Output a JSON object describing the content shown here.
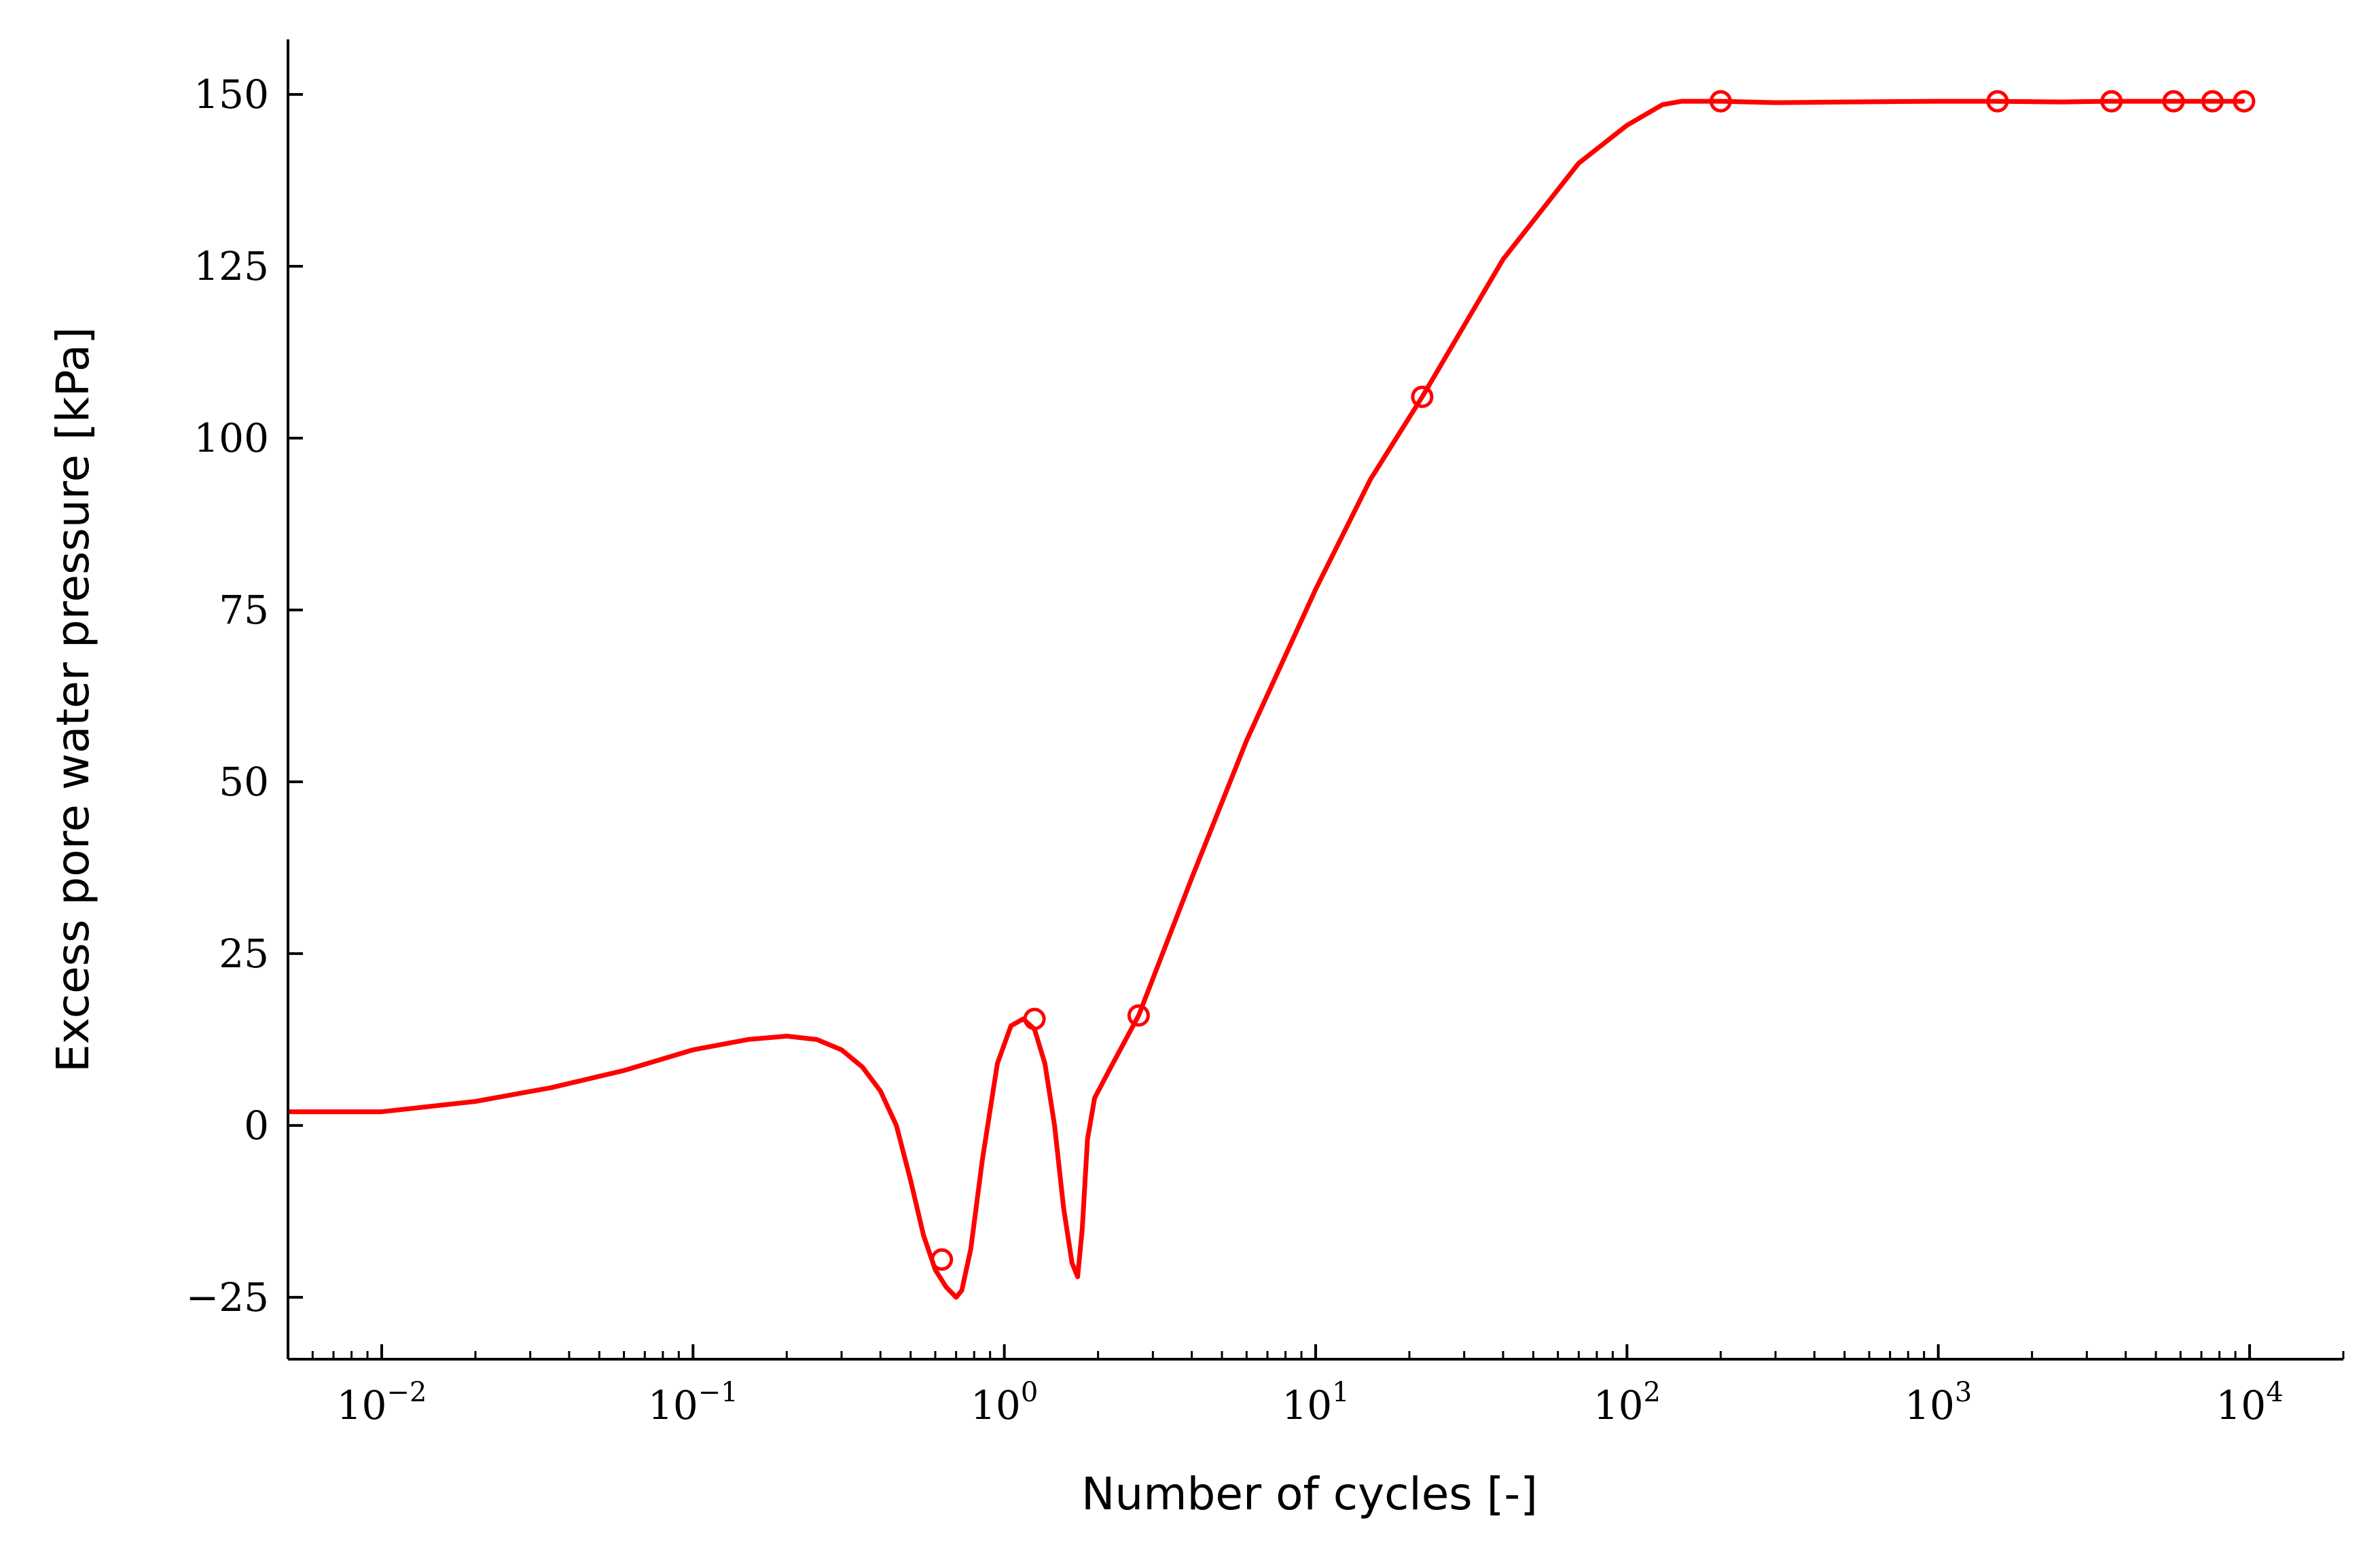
{
  "chart_data": {
    "type": "line",
    "xlabel": "Number of cycles [-]",
    "ylabel": "Excess pore water pressure [kPa]",
    "x_scale": "log",
    "xlim": [
      0.005,
      20000
    ],
    "ylim": [
      -34,
      158
    ],
    "grid": false,
    "color": "#ff0000",
    "xticks": [
      {
        "value": 0.01,
        "base": "10",
        "exp": "−2"
      },
      {
        "value": 0.1,
        "base": "10",
        "exp": "−1"
      },
      {
        "value": 1,
        "base": "10",
        "exp": "0"
      },
      {
        "value": 10,
        "base": "10",
        "exp": "1"
      },
      {
        "value": 100,
        "base": "10",
        "exp": "2"
      },
      {
        "value": 1000,
        "base": "10",
        "exp": "3"
      },
      {
        "value": 10000,
        "base": "10",
        "exp": "4"
      }
    ],
    "yticks": [
      {
        "value": -25,
        "label": "−25"
      },
      {
        "value": 0,
        "label": "0"
      },
      {
        "value": 25,
        "label": "25"
      },
      {
        "value": 50,
        "label": "50"
      },
      {
        "value": 75,
        "label": "75"
      },
      {
        "value": 100,
        "label": "100"
      },
      {
        "value": 125,
        "label": "125"
      },
      {
        "value": 150,
        "label": "150"
      }
    ],
    "line": {
      "x": [
        0.005,
        0.01,
        0.02,
        0.035,
        0.06,
        0.1,
        0.15,
        0.2,
        0.25,
        0.3,
        0.35,
        0.4,
        0.45,
        0.5,
        0.55,
        0.6,
        0.65,
        0.7,
        0.73,
        0.78,
        0.85,
        0.95,
        1.05,
        1.15,
        1.25,
        1.35,
        1.45,
        1.55,
        1.65,
        1.72,
        1.78,
        1.85,
        1.95,
        2.2,
        2.7,
        4,
        6,
        10,
        15,
        22,
        40,
        70,
        100,
        130,
        150,
        200,
        300,
        500,
        1000,
        1500,
        2500,
        3500,
        5500,
        7500,
        9500
      ],
      "y": [
        2,
        2,
        3.5,
        5.5,
        8,
        11,
        12.5,
        13,
        12.5,
        11,
        8.5,
        5,
        0,
        -8,
        -16,
        -21,
        -23.5,
        -25,
        -24,
        -18,
        -5,
        9,
        14.5,
        15.5,
        14,
        9,
        0,
        -12,
        -20,
        -22,
        -15,
        -2,
        4,
        8.5,
        16,
        36,
        56,
        78,
        94,
        106,
        126,
        140,
        145.5,
        148.5,
        149,
        149,
        148.8,
        148.9,
        149,
        149,
        148.9,
        149,
        149,
        149,
        149
      ]
    },
    "markers": {
      "x": [
        0.63,
        1.25,
        2.7,
        22,
        200,
        1550,
        3600,
        5700,
        7600,
        9600
      ],
      "y": [
        -19.5,
        15.5,
        16,
        106,
        149,
        149,
        149,
        149,
        149,
        149
      ]
    }
  }
}
